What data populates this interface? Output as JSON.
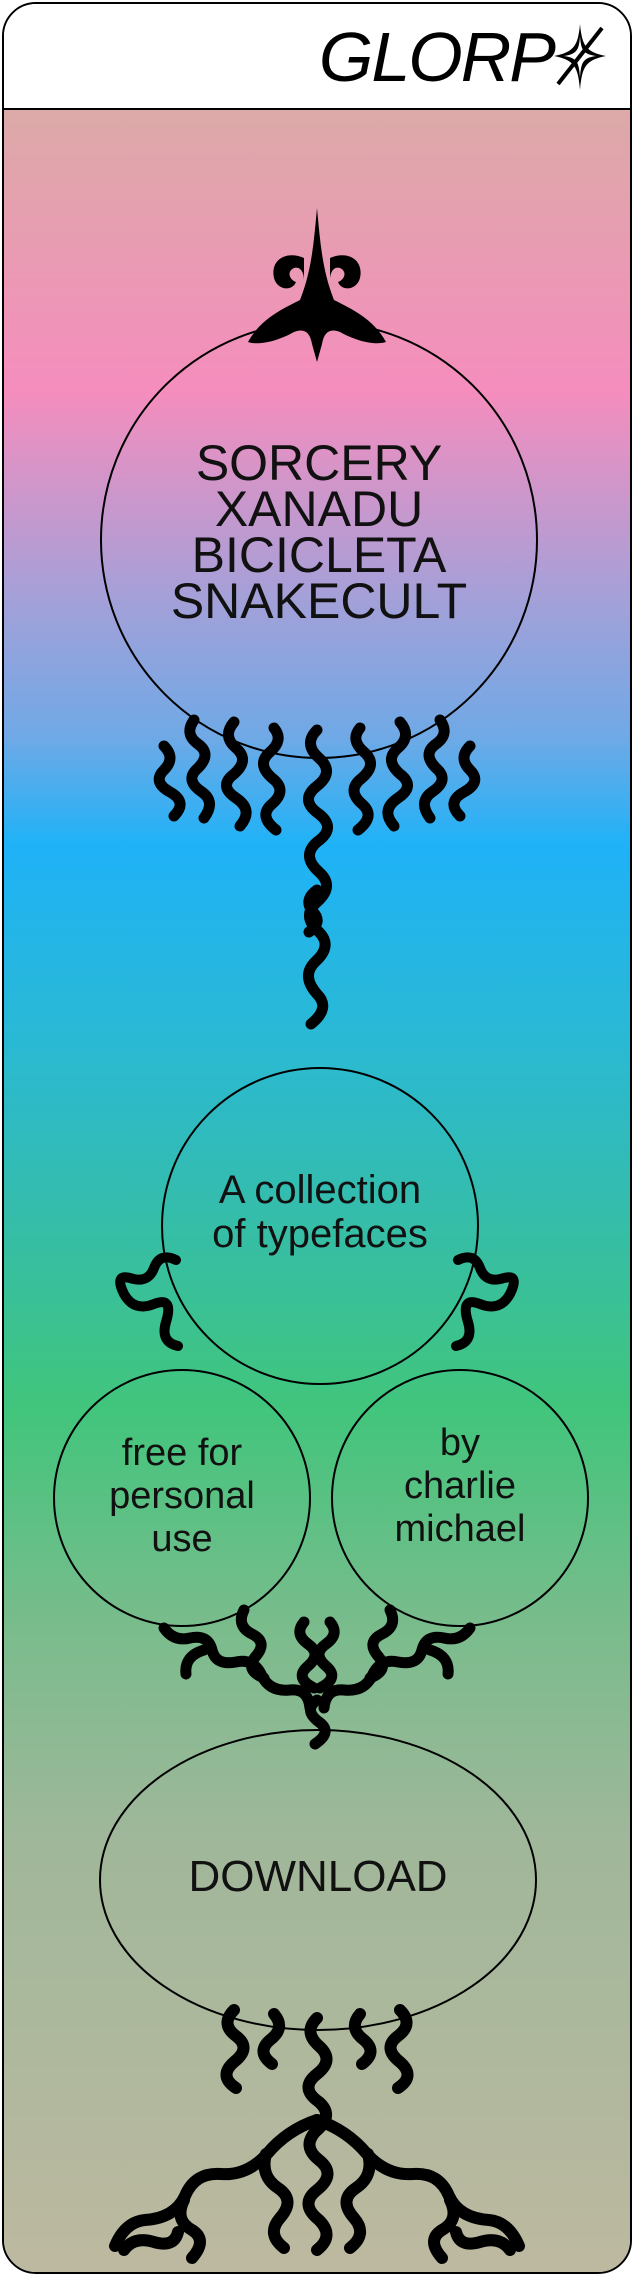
{
  "header": {
    "logo": "GLORP",
    "logo_icon": "sparkle-icon"
  },
  "main": {
    "typefaces": [
      "SORCERY",
      "XANADU",
      "BICICLETA",
      "SNAKECULT"
    ],
    "description": [
      "A collection",
      "of typefaces"
    ],
    "license": [
      "free for",
      "personal",
      "use"
    ],
    "author": [
      "by",
      "charlie",
      "michael"
    ],
    "download_label": "DOWNLOAD"
  },
  "colors": {
    "border": "#000000",
    "gradient_top": "#dcaaa8",
    "pink": "#f58dbd",
    "blue": "#1fb2f7",
    "green": "#41c57c",
    "gradient_bottom": "#bdb9a0"
  }
}
